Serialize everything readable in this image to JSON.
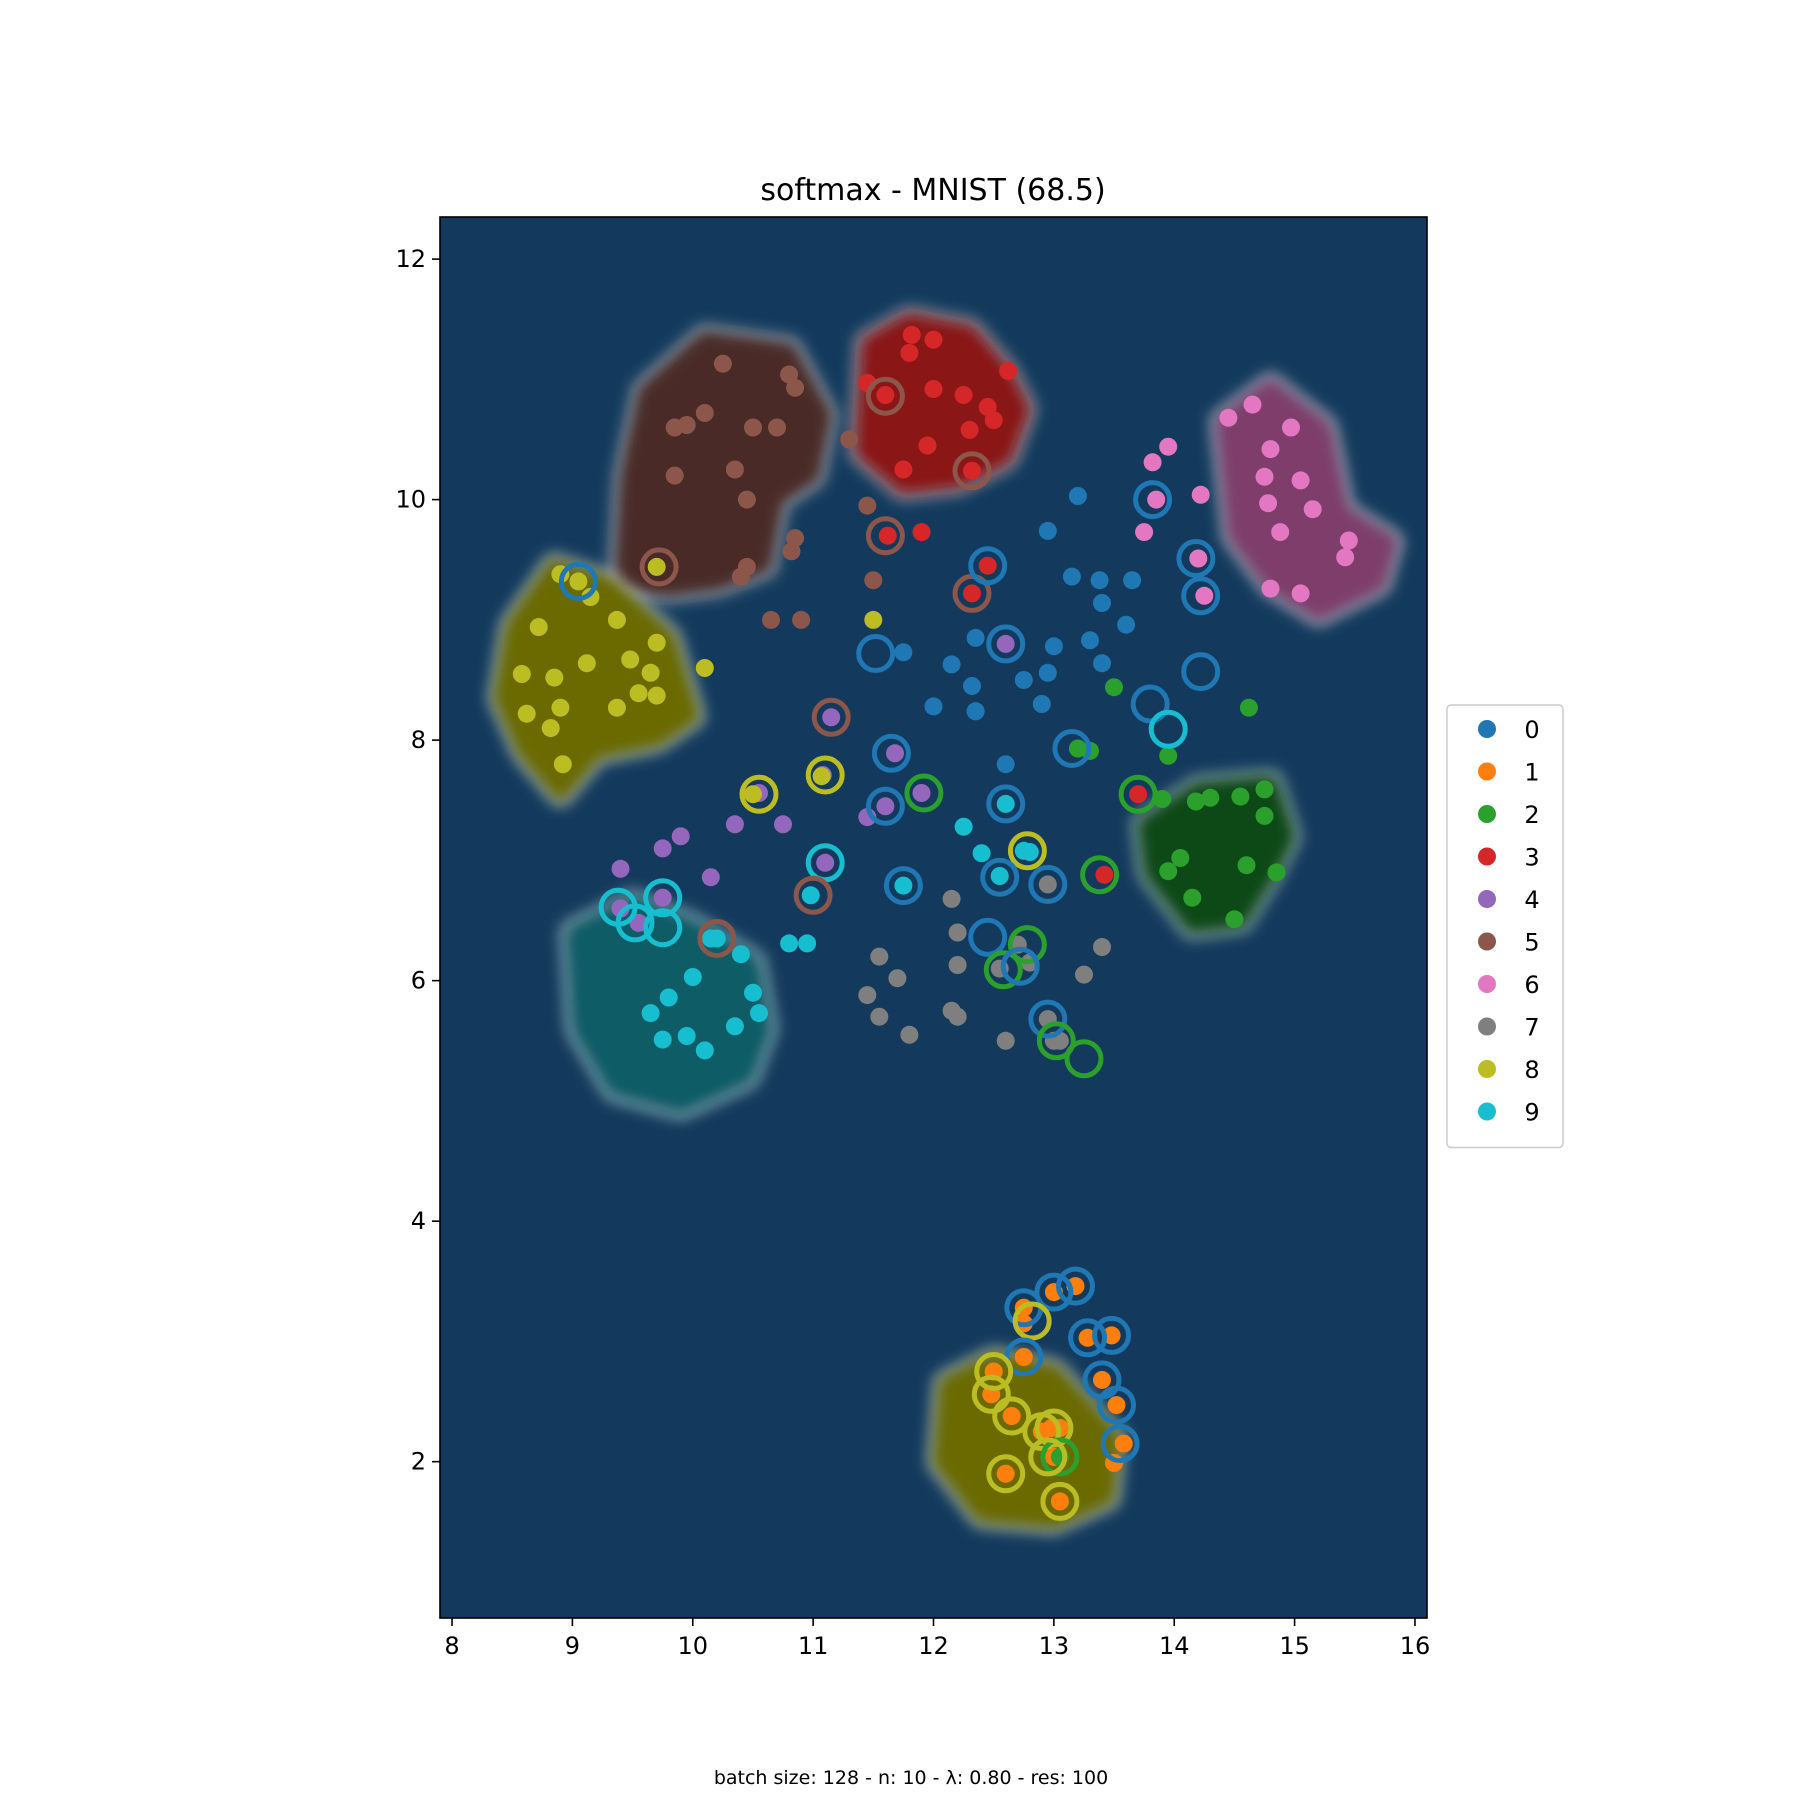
{
  "chart_data": {
    "type": "scatter",
    "title": "softmax - MNIST (68.5)",
    "footnote": "batch size: 128 - n: 10 - λ: 0.80 - res: 100",
    "xlabel": "",
    "ylabel": "",
    "xlim": [
      7.9,
      16.1
    ],
    "ylim": [
      0.7,
      12.35
    ],
    "xticks": [
      8,
      9,
      10,
      11,
      12,
      13,
      14,
      15,
      16
    ],
    "yticks": [
      2,
      4,
      6,
      8,
      10,
      12
    ],
    "grid": false,
    "legend_position": "right",
    "background_color": "#133a5c",
    "region_colors": {
      "3": "#8a1414",
      "5": "#4a2a25",
      "6": "#7e3e6a",
      "8": "#6b6b00",
      "9": "#0e5c66",
      "2": "#0f4a18",
      "1": "#6b6b00"
    },
    "classes": [
      {
        "label": "0",
        "color": "#1f77b4"
      },
      {
        "label": "1",
        "color": "#ff7f0e"
      },
      {
        "label": "2",
        "color": "#2ca02c"
      },
      {
        "label": "3",
        "color": "#d62728"
      },
      {
        "label": "4",
        "color": "#9467bd"
      },
      {
        "label": "5",
        "color": "#8c564b"
      },
      {
        "label": "6",
        "color": "#e377c2"
      },
      {
        "label": "7",
        "color": "#7f7f7f"
      },
      {
        "label": "8",
        "color": "#bcbd22"
      },
      {
        "label": "9",
        "color": "#17becf"
      }
    ],
    "regions": [
      {
        "class": "5",
        "points": [
          [
            9.4,
            9.3
          ],
          [
            9.45,
            10.2
          ],
          [
            9.6,
            10.9
          ],
          [
            10.1,
            11.35
          ],
          [
            10.8,
            11.25
          ],
          [
            11.1,
            10.7
          ],
          [
            11.0,
            10.2
          ],
          [
            10.7,
            10.0
          ],
          [
            10.6,
            9.45
          ],
          [
            10.2,
            9.3
          ],
          [
            9.8,
            9.25
          ]
        ]
      },
      {
        "class": "3",
        "points": [
          [
            11.4,
            10.4
          ],
          [
            11.45,
            11.3
          ],
          [
            11.8,
            11.5
          ],
          [
            12.3,
            11.4
          ],
          [
            12.6,
            11.05
          ],
          [
            12.75,
            10.75
          ],
          [
            12.6,
            10.35
          ],
          [
            12.2,
            10.15
          ],
          [
            11.75,
            10.1
          ]
        ]
      },
      {
        "class": "6",
        "points": [
          [
            14.4,
            10.65
          ],
          [
            14.8,
            10.95
          ],
          [
            15.25,
            10.6
          ],
          [
            15.4,
            9.9
          ],
          [
            15.8,
            9.65
          ],
          [
            15.7,
            9.3
          ],
          [
            15.2,
            9.05
          ],
          [
            14.8,
            9.3
          ],
          [
            14.5,
            9.7
          ]
        ]
      },
      {
        "class": "8",
        "points": [
          [
            8.4,
            8.35
          ],
          [
            8.5,
            8.95
          ],
          [
            8.85,
            9.45
          ],
          [
            9.3,
            9.3
          ],
          [
            9.8,
            8.85
          ],
          [
            10.0,
            8.2
          ],
          [
            9.7,
            8.0
          ],
          [
            9.2,
            7.9
          ],
          [
            8.9,
            7.55
          ],
          [
            8.6,
            7.9
          ]
        ]
      },
      {
        "class": "9",
        "points": [
          [
            9.0,
            6.4
          ],
          [
            9.05,
            5.6
          ],
          [
            9.35,
            5.1
          ],
          [
            9.9,
            4.95
          ],
          [
            10.45,
            5.2
          ],
          [
            10.6,
            5.6
          ],
          [
            10.5,
            6.15
          ],
          [
            10.0,
            6.45
          ],
          [
            9.5,
            6.65
          ]
        ]
      },
      {
        "class": "2",
        "points": [
          [
            13.75,
            7.3
          ],
          [
            14.2,
            7.6
          ],
          [
            14.8,
            7.65
          ],
          [
            14.95,
            7.2
          ],
          [
            14.8,
            6.9
          ],
          [
            14.55,
            6.5
          ],
          [
            14.15,
            6.45
          ],
          [
            13.8,
            6.9
          ]
        ]
      },
      {
        "class": "1",
        "points": [
          [
            12.05,
            2.0
          ],
          [
            12.1,
            2.65
          ],
          [
            12.5,
            2.85
          ],
          [
            13.0,
            2.75
          ],
          [
            13.5,
            2.2
          ],
          [
            13.45,
            1.7
          ],
          [
            13.0,
            1.5
          ],
          [
            12.4,
            1.55
          ]
        ]
      }
    ],
    "series": [
      {
        "name": "0",
        "x": [
          13.2,
          12.95,
          13.15,
          13.38,
          13.65,
          13.4,
          13.6,
          13.0,
          12.95,
          12.75,
          12.35,
          12.15,
          12.32,
          12.35,
          12.35,
          12.0,
          11.75,
          12.6,
          13.4,
          13.3,
          12.9
        ],
        "y": [
          10.03,
          9.74,
          9.36,
          9.33,
          9.33,
          9.14,
          8.96,
          8.78,
          8.56,
          8.5,
          8.85,
          8.63,
          8.45,
          8.24,
          8.24,
          8.28,
          8.73,
          7.8,
          8.64,
          8.83,
          8.3
        ]
      },
      {
        "name": "1",
        "x": [
          13.18,
          13.0,
          12.75,
          12.75,
          12.75,
          13.28,
          13.48,
          13.4,
          13.52,
          13.58,
          13.5,
          12.5,
          12.48,
          12.65,
          12.9,
          12.98,
          13.05,
          13.0,
          12.6,
          13.05
        ],
        "y": [
          3.46,
          3.41,
          3.28,
          3.15,
          2.87,
          3.03,
          3.05,
          2.68,
          2.47,
          2.15,
          1.99,
          2.75,
          2.56,
          2.38,
          2.25,
          2.28,
          2.28,
          2.04,
          1.9,
          1.67
        ]
      },
      {
        "name": "2",
        "x": [
          13.5,
          13.3,
          13.2,
          13.95,
          14.62,
          13.9,
          14.18,
          14.3,
          14.55,
          14.75,
          14.75,
          14.05,
          13.95,
          14.6,
          14.85,
          14.15,
          14.5,
          13.05
        ],
        "y": [
          8.44,
          7.91,
          7.93,
          7.87,
          8.27,
          7.51,
          7.49,
          7.52,
          7.53,
          7.59,
          7.37,
          7.02,
          6.91,
          6.96,
          6.9,
          6.69,
          6.51,
          2.04
        ]
      },
      {
        "name": "3",
        "x": [
          11.45,
          11.82,
          11.8,
          12.0,
          12.0,
          12.25,
          12.45,
          12.5,
          12.62,
          12.3,
          11.95,
          11.75,
          11.9,
          11.6,
          11.62,
          12.32,
          12.32,
          12.45,
          13.42,
          13.7
        ],
        "y": [
          10.97,
          11.37,
          11.22,
          11.33,
          10.92,
          10.87,
          10.77,
          10.66,
          11.07,
          10.58,
          10.45,
          10.25,
          9.73,
          10.87,
          9.7,
          10.24,
          9.22,
          9.45,
          6.88,
          7.55
        ]
      },
      {
        "name": "4",
        "x": [
          11.15,
          11.68,
          11.08,
          12.6,
          11.9,
          11.6,
          11.45,
          10.35,
          10.55,
          10.75,
          9.75,
          9.9,
          9.4,
          9.75,
          9.55,
          9.4,
          10.15,
          11.1
        ],
        "y": [
          8.19,
          7.89,
          7.71,
          8.8,
          7.56,
          7.45,
          7.36,
          7.3,
          7.56,
          7.3,
          7.1,
          7.2,
          6.93,
          6.69,
          6.48,
          6.6,
          6.86,
          6.98
        ]
      },
      {
        "name": "5",
        "x": [
          10.25,
          10.8,
          10.85,
          10.1,
          9.95,
          9.85,
          10.35,
          10.45,
          9.85,
          10.5,
          10.7,
          10.85,
          10.82,
          10.4,
          10.45,
          10.65,
          10.9,
          11.3,
          11.45,
          11.5
        ],
        "y": [
          11.13,
          11.04,
          10.93,
          10.72,
          10.62,
          10.6,
          10.25,
          10.0,
          10.2,
          10.6,
          10.6,
          9.68,
          9.57,
          9.36,
          9.44,
          9.0,
          9.0,
          10.5,
          9.95,
          9.33
        ]
      },
      {
        "name": "6",
        "x": [
          13.82,
          13.95,
          13.75,
          14.22,
          14.45,
          14.65,
          14.8,
          14.97,
          14.75,
          15.05,
          14.78,
          15.15,
          14.88,
          15.42,
          15.45,
          14.8,
          15.05,
          13.85,
          14.2,
          14.25
        ],
        "y": [
          10.31,
          10.44,
          9.73,
          10.04,
          10.68,
          10.79,
          10.42,
          10.6,
          10.19,
          10.16,
          9.97,
          9.92,
          9.73,
          9.52,
          9.66,
          9.26,
          9.22,
          10.0,
          9.51,
          9.2
        ]
      },
      {
        "name": "7",
        "x": [
          12.15,
          12.2,
          12.2,
          11.55,
          11.7,
          11.45,
          11.55,
          11.8,
          12.15,
          12.2,
          12.55,
          12.8,
          12.7,
          12.6,
          12.95,
          13.05,
          13.25,
          13.4,
          12.95,
          13.0
        ],
        "y": [
          6.68,
          6.4,
          6.13,
          6.2,
          6.02,
          5.88,
          5.7,
          5.55,
          5.75,
          5.7,
          6.1,
          6.15,
          6.3,
          5.5,
          6.8,
          5.5,
          6.05,
          6.28,
          5.68,
          5.5
        ]
      },
      {
        "name": "8",
        "x": [
          8.9,
          9.05,
          9.15,
          9.37,
          9.7,
          9.48,
          9.65,
          8.72,
          9.12,
          8.58,
          8.85,
          8.62,
          8.9,
          9.37,
          9.55,
          9.7,
          8.82,
          8.92,
          10.1,
          9.7,
          10.5,
          11.5,
          11.07
        ],
        "y": [
          9.38,
          9.32,
          9.19,
          9.0,
          8.81,
          8.67,
          8.56,
          8.94,
          8.64,
          8.55,
          8.52,
          8.22,
          8.27,
          8.27,
          8.39,
          8.37,
          8.1,
          7.8,
          8.6,
          9.44,
          7.55,
          9.0,
          7.7
        ]
      },
      {
        "name": "9",
        "x": [
          10.15,
          10.4,
          10.0,
          10.5,
          10.55,
          9.8,
          9.65,
          9.75,
          9.95,
          10.35,
          10.1,
          10.8,
          10.95,
          10.98,
          12.25,
          12.4,
          12.6,
          12.75,
          11.75,
          12.55,
          12.8,
          10.2
        ],
        "y": [
          6.35,
          6.22,
          6.03,
          5.9,
          5.73,
          5.86,
          5.73,
          5.51,
          5.54,
          5.62,
          5.42,
          6.31,
          6.31,
          6.71,
          7.28,
          7.06,
          7.47,
          7.08,
          6.79,
          6.87,
          7.07,
          6.35
        ]
      }
    ],
    "rings": [
      {
        "x": 9.05,
        "y": 9.32,
        "class": "0"
      },
      {
        "x": 9.72,
        "y": 9.44,
        "class": "5"
      },
      {
        "x": 11.6,
        "y": 10.86,
        "class": "5"
      },
      {
        "x": 11.6,
        "y": 9.7,
        "class": "5"
      },
      {
        "x": 12.32,
        "y": 10.24,
        "class": "5"
      },
      {
        "x": 12.32,
        "y": 9.22,
        "class": "5"
      },
      {
        "x": 12.45,
        "y": 9.45,
        "class": "0"
      },
      {
        "x": 11.52,
        "y": 8.72,
        "class": "0"
      },
      {
        "x": 12.6,
        "y": 8.8,
        "class": "0"
      },
      {
        "x": 11.15,
        "y": 8.19,
        "class": "5"
      },
      {
        "x": 11.65,
        "y": 7.89,
        "class": "0"
      },
      {
        "x": 11.1,
        "y": 7.71,
        "class": "8"
      },
      {
        "x": 10.55,
        "y": 7.55,
        "class": "8"
      },
      {
        "x": 11.6,
        "y": 7.45,
        "class": "0"
      },
      {
        "x": 11.92,
        "y": 7.56,
        "class": "2"
      },
      {
        "x": 11.1,
        "y": 6.98,
        "class": "9"
      },
      {
        "x": 11.0,
        "y": 6.71,
        "class": "5"
      },
      {
        "x": 10.2,
        "y": 6.35,
        "class": "5"
      },
      {
        "x": 9.38,
        "y": 6.61,
        "class": "9"
      },
      {
        "x": 9.52,
        "y": 6.48,
        "class": "9"
      },
      {
        "x": 9.75,
        "y": 6.69,
        "class": "9"
      },
      {
        "x": 9.75,
        "y": 6.44,
        "class": "9"
      },
      {
        "x": 11.75,
        "y": 6.79,
        "class": "0"
      },
      {
        "x": 12.6,
        "y": 7.47,
        "class": "0"
      },
      {
        "x": 12.78,
        "y": 7.08,
        "class": "8"
      },
      {
        "x": 12.55,
        "y": 6.86,
        "class": "0"
      },
      {
        "x": 12.95,
        "y": 6.8,
        "class": "0"
      },
      {
        "x": 12.45,
        "y": 6.36,
        "class": "0"
      },
      {
        "x": 12.78,
        "y": 6.3,
        "class": "2"
      },
      {
        "x": 12.58,
        "y": 6.09,
        "class": "2"
      },
      {
        "x": 12.72,
        "y": 6.12,
        "class": "0"
      },
      {
        "x": 12.95,
        "y": 5.68,
        "class": "0"
      },
      {
        "x": 13.02,
        "y": 5.5,
        "class": "2"
      },
      {
        "x": 13.25,
        "y": 5.35,
        "class": "2"
      },
      {
        "x": 13.38,
        "y": 6.88,
        "class": "2"
      },
      {
        "x": 13.15,
        "y": 7.93,
        "class": "0"
      },
      {
        "x": 13.7,
        "y": 7.55,
        "class": "2"
      },
      {
        "x": 13.8,
        "y": 8.3,
        "class": "0"
      },
      {
        "x": 13.95,
        "y": 8.09,
        "class": "9"
      },
      {
        "x": 14.22,
        "y": 8.57,
        "class": "0"
      },
      {
        "x": 13.82,
        "y": 10.0,
        "class": "0"
      },
      {
        "x": 14.18,
        "y": 9.51,
        "class": "0"
      },
      {
        "x": 14.22,
        "y": 9.2,
        "class": "0"
      },
      {
        "x": 13.18,
        "y": 3.46,
        "class": "0"
      },
      {
        "x": 13.0,
        "y": 3.41,
        "class": "0"
      },
      {
        "x": 12.75,
        "y": 3.28,
        "class": "0"
      },
      {
        "x": 12.82,
        "y": 3.17,
        "class": "8"
      },
      {
        "x": 12.75,
        "y": 2.87,
        "class": "0"
      },
      {
        "x": 13.28,
        "y": 3.03,
        "class": "0"
      },
      {
        "x": 13.48,
        "y": 3.05,
        "class": "0"
      },
      {
        "x": 13.4,
        "y": 2.68,
        "class": "0"
      },
      {
        "x": 13.52,
        "y": 2.47,
        "class": "0"
      },
      {
        "x": 13.55,
        "y": 2.15,
        "class": "0"
      },
      {
        "x": 12.5,
        "y": 2.75,
        "class": "8"
      },
      {
        "x": 12.48,
        "y": 2.56,
        "class": "8"
      },
      {
        "x": 12.65,
        "y": 2.38,
        "class": "8"
      },
      {
        "x": 12.9,
        "y": 2.25,
        "class": "8"
      },
      {
        "x": 13.0,
        "y": 2.28,
        "class": "8"
      },
      {
        "x": 13.05,
        "y": 2.04,
        "class": "2"
      },
      {
        "x": 12.95,
        "y": 2.04,
        "class": "8"
      },
      {
        "x": 12.6,
        "y": 1.9,
        "class": "8"
      },
      {
        "x": 13.05,
        "y": 1.67,
        "class": "8"
      }
    ]
  }
}
